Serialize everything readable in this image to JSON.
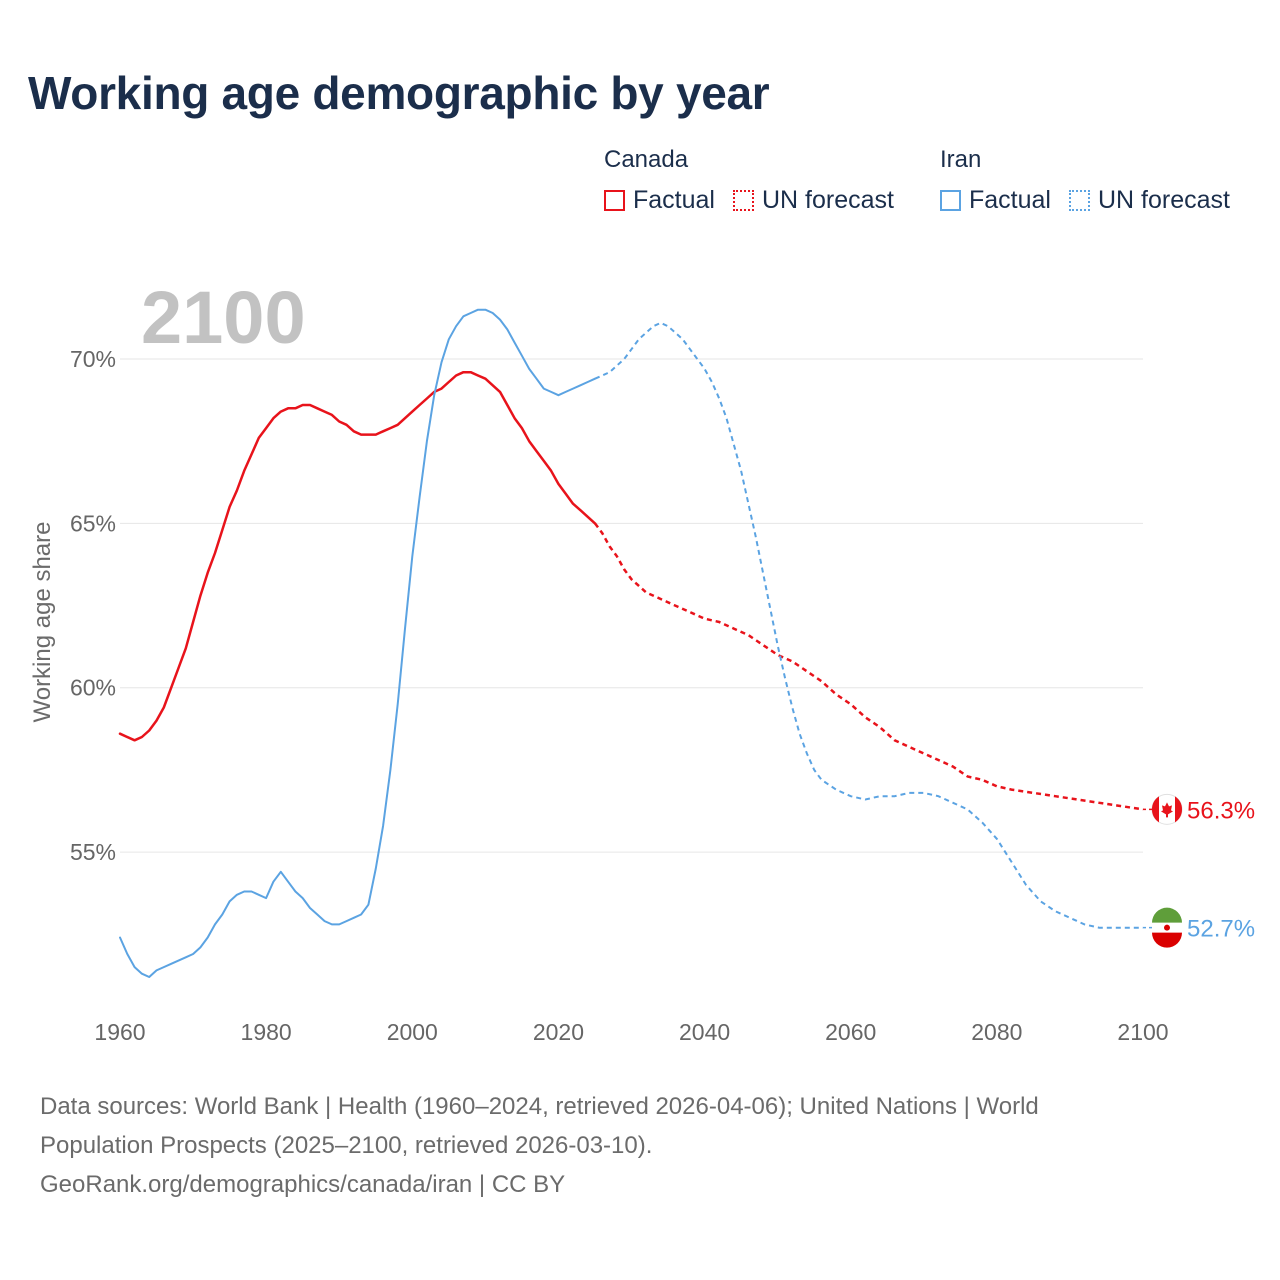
{
  "chart_data": {
    "type": "line",
    "title": "Working age demographic by year",
    "ylabel": "Working age share",
    "xlabel": "",
    "xlim": [
      1960,
      2100
    ],
    "ylim": [
      50.5,
      72.1
    ],
    "x_ticks": [
      "1960",
      "1980",
      "2000",
      "2020",
      "2040",
      "2060",
      "2080",
      "2100"
    ],
    "y_ticks": [
      "55%",
      "60%",
      "65%",
      "70%"
    ],
    "year_overlay": "2100",
    "legend": {
      "groups": [
        {
          "name": "Canada",
          "entries": [
            "Factual",
            "UN forecast"
          ]
        },
        {
          "name": "Iran",
          "entries": [
            "Factual",
            "UN forecast"
          ]
        }
      ]
    },
    "series": [
      {
        "name": "Canada",
        "color": "#e8131b",
        "end_label": "56.3%",
        "factual": [
          [
            1960,
            58.6
          ],
          [
            1962,
            58.4
          ],
          [
            1963,
            58.5
          ],
          [
            1964,
            58.7
          ],
          [
            1965,
            59.0
          ],
          [
            1966,
            59.4
          ],
          [
            1967,
            60.0
          ],
          [
            1968,
            60.6
          ],
          [
            1969,
            61.2
          ],
          [
            1970,
            62.0
          ],
          [
            1971,
            62.8
          ],
          [
            1972,
            63.5
          ],
          [
            1973,
            64.1
          ],
          [
            1974,
            64.8
          ],
          [
            1975,
            65.5
          ],
          [
            1976,
            66.0
          ],
          [
            1977,
            66.6
          ],
          [
            1978,
            67.1
          ],
          [
            1979,
            67.6
          ],
          [
            1980,
            67.9
          ],
          [
            1981,
            68.2
          ],
          [
            1982,
            68.4
          ],
          [
            1983,
            68.5
          ],
          [
            1984,
            68.5
          ],
          [
            1985,
            68.6
          ],
          [
            1986,
            68.6
          ],
          [
            1987,
            68.5
          ],
          [
            1988,
            68.4
          ],
          [
            1989,
            68.3
          ],
          [
            1990,
            68.1
          ],
          [
            1991,
            68.0
          ],
          [
            1992,
            67.8
          ],
          [
            1993,
            67.7
          ],
          [
            1994,
            67.7
          ],
          [
            1995,
            67.7
          ],
          [
            1996,
            67.8
          ],
          [
            1997,
            67.9
          ],
          [
            1998,
            68.0
          ],
          [
            1999,
            68.2
          ],
          [
            2000,
            68.4
          ],
          [
            2001,
            68.6
          ],
          [
            2002,
            68.8
          ],
          [
            2003,
            69.0
          ],
          [
            2004,
            69.1
          ],
          [
            2005,
            69.3
          ],
          [
            2006,
            69.5
          ],
          [
            2007,
            69.6
          ],
          [
            2008,
            69.6
          ],
          [
            2009,
            69.5
          ],
          [
            2010,
            69.4
          ],
          [
            2011,
            69.2
          ],
          [
            2012,
            69.0
          ],
          [
            2013,
            68.6
          ],
          [
            2014,
            68.2
          ],
          [
            2015,
            67.9
          ],
          [
            2016,
            67.5
          ],
          [
            2017,
            67.2
          ],
          [
            2018,
            66.9
          ],
          [
            2019,
            66.6
          ],
          [
            2020,
            66.2
          ],
          [
            2021,
            65.9
          ],
          [
            2022,
            65.6
          ],
          [
            2023,
            65.4
          ],
          [
            2024,
            65.2
          ],
          [
            2025,
            65.0
          ]
        ],
        "forecast": [
          [
            2025,
            65.0
          ],
          [
            2026,
            64.7
          ],
          [
            2027,
            64.3
          ],
          [
            2028,
            64.0
          ],
          [
            2029,
            63.6
          ],
          [
            2030,
            63.3
          ],
          [
            2031,
            63.1
          ],
          [
            2032,
            62.9
          ],
          [
            2034,
            62.7
          ],
          [
            2036,
            62.5
          ],
          [
            2038,
            62.3
          ],
          [
            2040,
            62.1
          ],
          [
            2042,
            62.0
          ],
          [
            2044,
            61.8
          ],
          [
            2046,
            61.6
          ],
          [
            2048,
            61.3
          ],
          [
            2050,
            61.0
          ],
          [
            2052,
            60.8
          ],
          [
            2054,
            60.5
          ],
          [
            2056,
            60.2
          ],
          [
            2058,
            59.8
          ],
          [
            2060,
            59.5
          ],
          [
            2062,
            59.1
          ],
          [
            2064,
            58.8
          ],
          [
            2066,
            58.4
          ],
          [
            2068,
            58.2
          ],
          [
            2070,
            58.0
          ],
          [
            2072,
            57.8
          ],
          [
            2074,
            57.6
          ],
          [
            2076,
            57.3
          ],
          [
            2078,
            57.2
          ],
          [
            2080,
            57.0
          ],
          [
            2082,
            56.9
          ],
          [
            2085,
            56.8
          ],
          [
            2088,
            56.7
          ],
          [
            2091,
            56.6
          ],
          [
            2094,
            56.5
          ],
          [
            2097,
            56.4
          ],
          [
            2100,
            56.3
          ]
        ]
      },
      {
        "name": "Iran",
        "color": "#5ba3e2",
        "end_label": "52.7%",
        "factual": [
          [
            1960,
            52.4
          ],
          [
            1961,
            51.9
          ],
          [
            1962,
            51.5
          ],
          [
            1963,
            51.3
          ],
          [
            1964,
            51.2
          ],
          [
            1965,
            51.4
          ],
          [
            1966,
            51.5
          ],
          [
            1967,
            51.6
          ],
          [
            1968,
            51.7
          ],
          [
            1969,
            51.8
          ],
          [
            1970,
            51.9
          ],
          [
            1971,
            52.1
          ],
          [
            1972,
            52.4
          ],
          [
            1973,
            52.8
          ],
          [
            1974,
            53.1
          ],
          [
            1975,
            53.5
          ],
          [
            1976,
            53.7
          ],
          [
            1977,
            53.8
          ],
          [
            1978,
            53.8
          ],
          [
            1979,
            53.7
          ],
          [
            1980,
            53.6
          ],
          [
            1981,
            54.1
          ],
          [
            1982,
            54.4
          ],
          [
            1983,
            54.1
          ],
          [
            1984,
            53.8
          ],
          [
            1985,
            53.6
          ],
          [
            1986,
            53.3
          ],
          [
            1987,
            53.1
          ],
          [
            1988,
            52.9
          ],
          [
            1989,
            52.8
          ],
          [
            1990,
            52.8
          ],
          [
            1991,
            52.9
          ],
          [
            1992,
            53.0
          ],
          [
            1993,
            53.1
          ],
          [
            1994,
            53.4
          ],
          [
            1995,
            54.5
          ],
          [
            1996,
            55.8
          ],
          [
            1997,
            57.5
          ],
          [
            1998,
            59.5
          ],
          [
            1999,
            61.8
          ],
          [
            2000,
            64.0
          ],
          [
            2001,
            65.8
          ],
          [
            2002,
            67.5
          ],
          [
            2003,
            68.9
          ],
          [
            2004,
            69.9
          ],
          [
            2005,
            70.6
          ],
          [
            2006,
            71.0
          ],
          [
            2007,
            71.3
          ],
          [
            2008,
            71.4
          ],
          [
            2009,
            71.5
          ],
          [
            2010,
            71.5
          ],
          [
            2011,
            71.4
          ],
          [
            2012,
            71.2
          ],
          [
            2013,
            70.9
          ],
          [
            2014,
            70.5
          ],
          [
            2015,
            70.1
          ],
          [
            2016,
            69.7
          ],
          [
            2017,
            69.4
          ],
          [
            2018,
            69.1
          ],
          [
            2019,
            69.0
          ],
          [
            2020,
            68.9
          ],
          [
            2021,
            69.0
          ],
          [
            2022,
            69.1
          ],
          [
            2023,
            69.2
          ],
          [
            2024,
            69.3
          ],
          [
            2025,
            69.4
          ]
        ],
        "forecast": [
          [
            2025,
            69.4
          ],
          [
            2026,
            69.5
          ],
          [
            2027,
            69.6
          ],
          [
            2028,
            69.8
          ],
          [
            2029,
            70.0
          ],
          [
            2030,
            70.3
          ],
          [
            2031,
            70.6
          ],
          [
            2032,
            70.8
          ],
          [
            2033,
            71.0
          ],
          [
            2034,
            71.1
          ],
          [
            2035,
            71.0
          ],
          [
            2036,
            70.8
          ],
          [
            2037,
            70.6
          ],
          [
            2038,
            70.3
          ],
          [
            2039,
            70.0
          ],
          [
            2040,
            69.7
          ],
          [
            2041,
            69.3
          ],
          [
            2042,
            68.8
          ],
          [
            2043,
            68.2
          ],
          [
            2044,
            67.4
          ],
          [
            2045,
            66.6
          ],
          [
            2046,
            65.6
          ],
          [
            2047,
            64.6
          ],
          [
            2048,
            63.5
          ],
          [
            2049,
            62.4
          ],
          [
            2050,
            61.3
          ],
          [
            2051,
            60.3
          ],
          [
            2052,
            59.4
          ],
          [
            2053,
            58.6
          ],
          [
            2054,
            58.0
          ],
          [
            2055,
            57.5
          ],
          [
            2056,
            57.2
          ],
          [
            2058,
            56.9
          ],
          [
            2060,
            56.7
          ],
          [
            2062,
            56.6
          ],
          [
            2064,
            56.7
          ],
          [
            2066,
            56.7
          ],
          [
            2068,
            56.8
          ],
          [
            2070,
            56.8
          ],
          [
            2072,
            56.7
          ],
          [
            2074,
            56.5
          ],
          [
            2076,
            56.3
          ],
          [
            2078,
            55.9
          ],
          [
            2080,
            55.4
          ],
          [
            2082,
            54.7
          ],
          [
            2084,
            54.0
          ],
          [
            2086,
            53.5
          ],
          [
            2088,
            53.2
          ],
          [
            2090,
            53.0
          ],
          [
            2092,
            52.8
          ],
          [
            2094,
            52.7
          ],
          [
            2096,
            52.7
          ],
          [
            2098,
            52.7
          ],
          [
            2100,
            52.7
          ]
        ]
      }
    ]
  },
  "footer": {
    "line1": "Data sources: World Bank | Health (1960–2024, retrieved 2026-04-06); United Nations | World",
    "line2": "Population Prospects (2025–2100, retrieved 2026-03-10).",
    "line3": "GeoRank.org/demographics/canada/iran | CC BY"
  }
}
